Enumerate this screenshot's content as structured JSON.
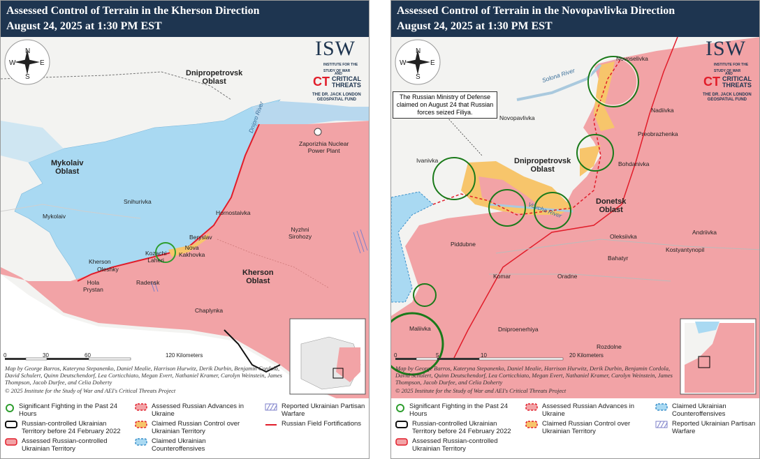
{
  "left": {
    "title_line1": "Assessed Control of Terrain in the Kherson Direction",
    "title_line2": "August 24, 2025 at 1:30 PM EST",
    "oblasts": {
      "dnipro": "Dnipropetrovsk\nOblast",
      "mykolaiv": "Mykolaiv\nOblast",
      "kherson": "Kherson\nOblast"
    },
    "places": {
      "znpp": "Zaporizhia Nuclear\nPower Plant",
      "snihurivka": "Snihurivka",
      "mykolaiv": "Mykolaiv",
      "hornostaivka": "Hornostaivka",
      "nyzhni": "Nyzhni\nSirohozy",
      "beryslav": "Beryslav",
      "kozachi": "Kozachi\nLaheri",
      "nova_kakhovka": "Nova\nKakhovka",
      "kherson": "Kherson",
      "oleshky": "Oleshky",
      "hola": "Hola\nPrystan",
      "radensk": "Radensk",
      "chaplynka": "Chaplynka"
    },
    "river": "Dnipro River",
    "scale": {
      "t0": "0",
      "t1": "30",
      "t2": "60",
      "t3": "120 Kilometers"
    },
    "credit": "Map by George Barros, Kateryna Stepanenko, Daniel Mealie, Harrison Hurwitz, Derik Durbin, Benjamin Cordola, David Schulert, Quinn Deutschendorf, Lea Corticchiato, Megan Evert, Nathaniel Kramer, Carolyn Weinstein, James Thompson, Jacob Durfee, and Celia Doherty",
    "copyright": "© 2025 Institute for the Study of War and AEI's Critical Threats Project",
    "legend": {
      "fighting": "Significant Fighting in the Past 24 Hours",
      "pre2022": "Russian-controlled Ukrainian Territory before 24 February 2022",
      "assessed_ru": "Assessed Russian-controlled Ukrainian Territory",
      "advances": "Assessed Russian Advances in Ukraine",
      "claimed_ru": "Claimed Russian Control over Ukrainian Territory",
      "claimed_ua": "Claimed Ukrainian Counteroffensives",
      "partisan": "Reported Ukrainian Partisan Warfare",
      "fortifications": "Russian Field Fortifications"
    }
  },
  "right": {
    "title_line1": "Assessed Control of Terrain in the Novopavlivka Direction",
    "title_line2": "August 24, 2025 at 1:30 PM EST",
    "oblasts": {
      "dnipro": "Dnipropetrovsk\nOblast",
      "donetsk": "Donetsk\nOblast"
    },
    "places": {
      "novoselivka": "Novoselivka",
      "nadiivka": "Nadiivka",
      "novopavlivka": "Novopavlivka",
      "preobrazhenka": "Preobrazhenka",
      "ivanivka": "Ivanivka",
      "bohdanivka": "Bohdanivka",
      "andriivka": "Andriivka",
      "piddubne": "Piddubne",
      "oleksiivka": "Oleksiivka",
      "kostyantynopil": "Kostyantynopil",
      "bahatyr": "Bahatyr",
      "komar": "Komar",
      "oradne": "Oradne",
      "dniproenerhiya": "Dniproenerhiya",
      "rozdolne": "Rozdolne",
      "maliivka": "Maliivka"
    },
    "river1": "Solona River",
    "river2": "Vovcha River",
    "note": "The Russian Ministry of Defense claimed on August 24 that Russian forces seized Filiya.",
    "scale": {
      "t0": "0",
      "t1": "5",
      "t2": "10",
      "t3": "20 Kilometers"
    },
    "credit": "Map by George Barros, Kateryna Stepanenko, Daniel Mealie, Harrison Hurwitz, Derik Durbin, Benjamin Cordola, David Schulert, Quinn Deutschendorf, Lea Corticchiato, Megan Evert, Nathaniel Kramer, Carolyn Weinstein, James Thompson, Jacob Durfee, and Celia Doherty",
    "copyright": "© 2025 Institute for the Study of War and AEI's Critical Threats Project",
    "legend": {
      "fighting": "Significant Fighting in the Past 24 Hours",
      "pre2022": "Russian-controlled Ukrainian Territory before 24 February 2022",
      "assessed_ru": "Assessed Russian-controlled Ukrainian Territory",
      "advances": "Assessed Russian Advances in Ukraine",
      "claimed_ru": "Claimed Russian Control over Ukrainian Territory",
      "claimed_ua": "Claimed Ukrainian Counteroffensives",
      "partisan": "Reported Ukrainian Partisan Warfare"
    }
  },
  "branding": {
    "isw": "ISW",
    "isw_sub": "INSTITUTE FOR THE\nSTUDY OF WAR",
    "and": "AND",
    "ct": "CT",
    "ct_text": "CRITICAL\nTHREATS",
    "fund": "THE DR. JACK LONDON\nGEOSPATIAL FUND",
    "compass": {
      "n": "N",
      "s": "S",
      "e": "E",
      "w": "W"
    }
  },
  "colors": {
    "header": "#1e3550",
    "russian": "#f2a3a6",
    "ukr_counter": "#a9d9f2",
    "claimed_ru": "#f7c56b",
    "fighting": "#2e9e2e",
    "frontline": "#e11d2a"
  }
}
